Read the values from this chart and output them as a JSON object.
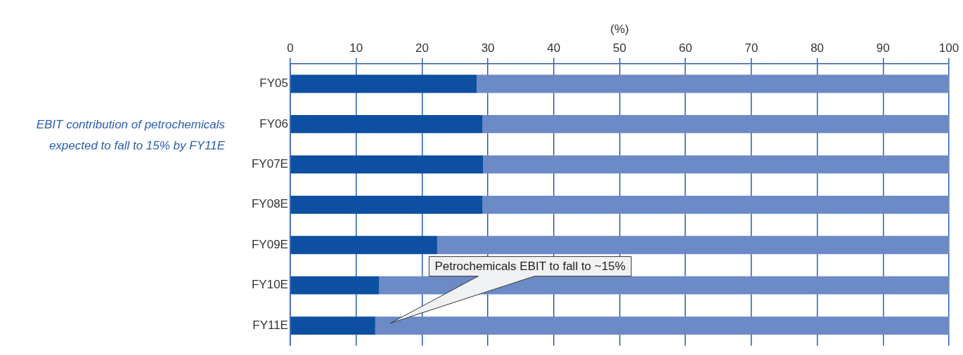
{
  "chart_data": {
    "type": "bar",
    "orientation": "horizontal",
    "stacked": true,
    "xlabel": "(%)",
    "categories": [
      "FY05",
      "FY06",
      "FY07E",
      "FY08E",
      "FY09E",
      "FY10E",
      "FY11E"
    ],
    "series": [
      {
        "color": "#0d4fa0",
        "values": [
          28.3,
          29.2,
          29.3,
          29.2,
          22.3,
          13.5,
          12.9
        ]
      },
      {
        "color": "#6b8ac6",
        "values": [
          71.7,
          70.8,
          70.7,
          70.8,
          77.7,
          86.5,
          87.1
        ]
      }
    ],
    "xlim": [
      0,
      100
    ],
    "xticks": [
      0,
      10,
      20,
      30,
      40,
      50,
      60,
      70,
      80,
      90,
      100
    ],
    "grid": "x",
    "legend": false,
    "annotations": [
      "EBIT contribution of petrochemicals expected to fall to 15% by FY11E",
      "Petrochemicals EBIT to fall to ~15%"
    ]
  }
}
